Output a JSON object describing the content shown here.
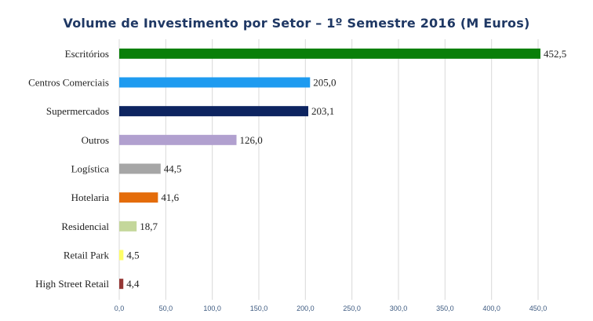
{
  "chart_data": {
    "type": "bar",
    "orientation": "horizontal",
    "title": "Volume de Investimento  por Setor – 1º Semestre 2016 (M Euros)",
    "categories": [
      "Escritórios",
      "Centros Comerciais",
      "Supermercados",
      "Outros",
      "Logística",
      "Hotelaria",
      "Residencial",
      "Retail Park",
      "High Street Retail"
    ],
    "values": [
      452.5,
      205.0,
      203.1,
      126.0,
      44.5,
      41.6,
      18.7,
      4.5,
      4.4
    ],
    "value_labels": [
      "452,5",
      "205,0",
      "203,1",
      "126,0",
      "44,5",
      "41,6",
      "18,7",
      "4,5",
      "4,4"
    ],
    "colors": [
      "#0a7f0a",
      "#1e9bf0",
      "#0d2460",
      "#b1a0cf",
      "#a6a6a6",
      "#e46c0a",
      "#c4d79b",
      "#ffff66",
      "#953735"
    ],
    "xlim": [
      0,
      450
    ],
    "xticks": [
      0,
      50,
      100,
      150,
      200,
      250,
      300,
      350,
      400,
      450
    ],
    "xtick_labels": [
      "0,0",
      "50,0",
      "100,0",
      "150,0",
      "200,0",
      "250,0",
      "300,0",
      "350,0",
      "400,0",
      "450,0"
    ],
    "xlabel": "",
    "ylabel": "",
    "grid": "vertical",
    "legend": "none"
  }
}
